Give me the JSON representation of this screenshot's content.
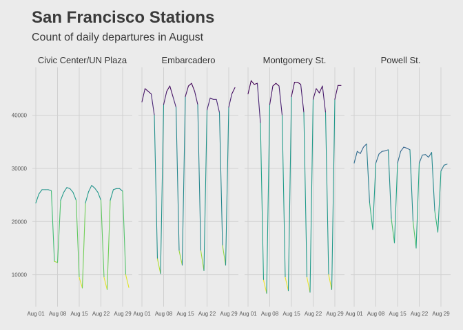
{
  "chart_data": {
    "type": "line",
    "title": "San Francisco Stations",
    "subtitle": "Count of daily departures in August",
    "xlabel": "",
    "ylabel": "",
    "x_range": [
      "2016-08-01",
      "2016-08-31"
    ],
    "ylim": [
      4000,
      49000
    ],
    "y_ticks": [
      10000,
      20000,
      30000,
      40000
    ],
    "y_tick_labels": [
      "10000",
      "20000",
      "30000",
      "40000"
    ],
    "x_ticks": [
      "2016-08-01",
      "2016-08-08",
      "2016-08-15",
      "2016-08-22",
      "2016-08-29"
    ],
    "x_tick_labels": [
      "Aug 01",
      "Aug 08",
      "Aug 15",
      "Aug 22",
      "Aug 29"
    ],
    "grid": true,
    "legend": "none",
    "color_scale": "viridis",
    "color_domain": [
      7000,
      46000
    ],
    "facets": [
      {
        "name": "Civic Center/UN Plaza",
        "values": [
          23500,
          25200,
          26000,
          26000,
          26000,
          25800,
          12500,
          12300,
          24000,
          25500,
          26400,
          26200,
          25500,
          24000,
          9500,
          7500,
          23500,
          25600,
          26800,
          26300,
          25500,
          24000,
          9500,
          7200,
          24000,
          26000,
          26200,
          26200,
          25700,
          10000,
          7600
        ]
      },
      {
        "name": "Embarcadero",
        "values": [
          42500,
          45000,
          44500,
          44000,
          40000,
          13000,
          10200,
          42000,
          44500,
          45500,
          43500,
          41500,
          14500,
          11800,
          43500,
          45500,
          46000,
          44500,
          42000,
          14500,
          10800,
          41000,
          43200,
          43000,
          43000,
          40500,
          15500,
          11800,
          41500,
          44000,
          45200
        ]
      },
      {
        "name": "Montgomery St.",
        "values": [
          44000,
          46500,
          45800,
          46000,
          38500,
          9000,
          6500,
          42000,
          45500,
          46000,
          45500,
          40000,
          9500,
          7000,
          43500,
          46200,
          46200,
          45800,
          40500,
          9500,
          6700,
          43000,
          45000,
          44200,
          45500,
          40500,
          10000,
          7200,
          43000,
          45600,
          45600
        ]
      },
      {
        "name": "Powell St.",
        "values": [
          31000,
          33200,
          32800,
          34000,
          34600,
          23500,
          18500,
          31000,
          32700,
          33200,
          33300,
          33500,
          20500,
          16000,
          31000,
          33200,
          34000,
          33800,
          33500,
          20000,
          15000,
          31000,
          32500,
          32600,
          32100,
          33000,
          22000,
          18000,
          29500,
          30600,
          30800
        ]
      }
    ]
  }
}
